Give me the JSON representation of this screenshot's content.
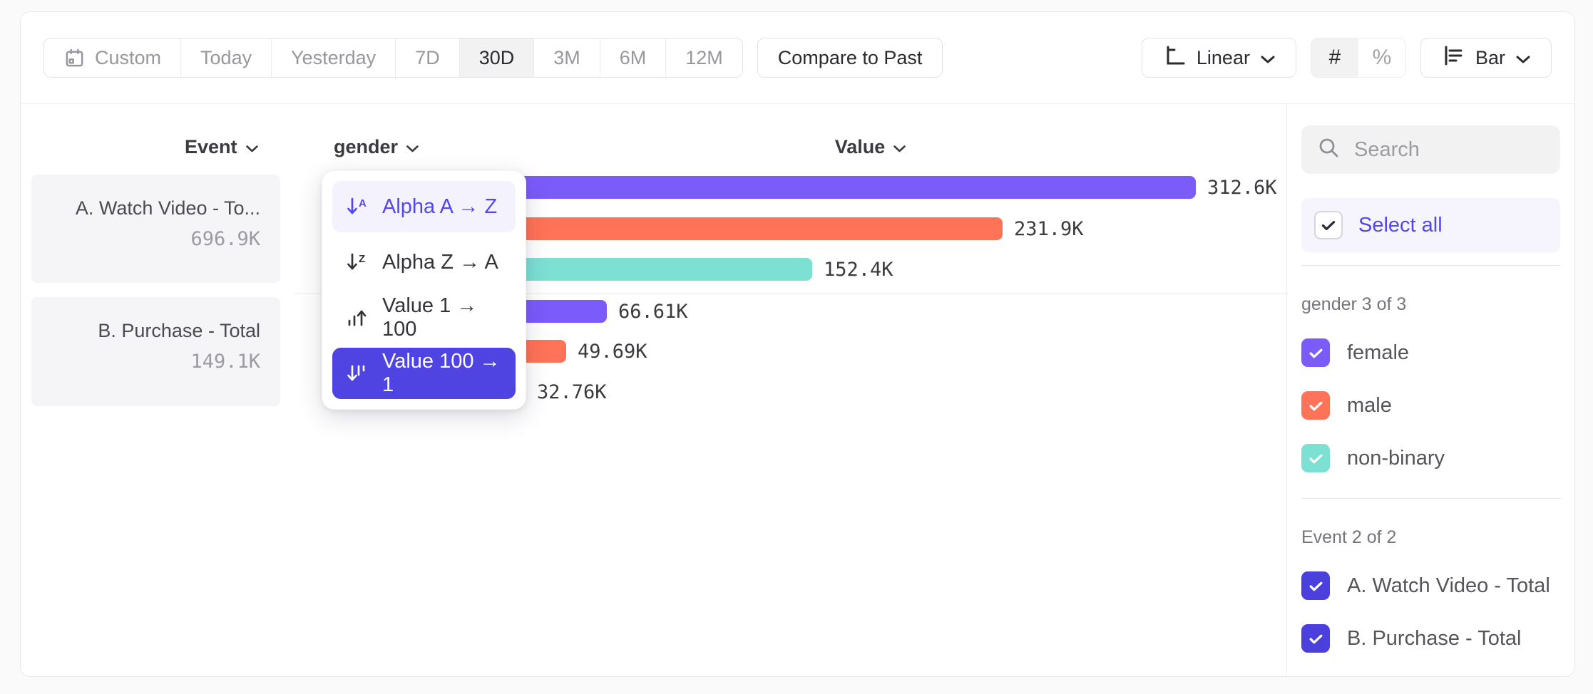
{
  "toolbar": {
    "date_ranges": [
      {
        "label": "Custom",
        "icon": "calendar-icon",
        "active": false
      },
      {
        "label": "Today",
        "active": false
      },
      {
        "label": "Yesterday",
        "active": false
      },
      {
        "label": "7D",
        "active": false
      },
      {
        "label": "30D",
        "active": true
      },
      {
        "label": "3M",
        "active": false
      },
      {
        "label": "6M",
        "active": false
      },
      {
        "label": "12M",
        "active": false
      }
    ],
    "compare_label": "Compare to Past",
    "scale_label": "Linear",
    "number_symbol": "#",
    "percent_symbol": "%",
    "value_format_active": "#",
    "chart_type_label": "Bar"
  },
  "columns": {
    "event": "Event",
    "breakdown": "gender",
    "value": "Value"
  },
  "events": [
    {
      "name": "A. Watch Video - To...",
      "total": "696.9K"
    },
    {
      "name": "B. Purchase - Total",
      "total": "149.1K"
    }
  ],
  "sort_menu": {
    "items": [
      {
        "id": "alpha-asc",
        "label": "Alpha A → Z",
        "state": "hover"
      },
      {
        "id": "alpha-desc",
        "label": "Alpha Z → A",
        "state": "normal"
      },
      {
        "id": "value-asc",
        "label": "Value 1 → 100",
        "state": "normal"
      },
      {
        "id": "value-desc",
        "label": "Value 100 → 1",
        "state": "selected"
      }
    ]
  },
  "chart_data": {
    "type": "bar",
    "orientation": "horizontal",
    "breakdown": "gender",
    "max_value_k": 312.6,
    "groups": [
      {
        "event": "A. Watch Video - Total",
        "bars": [
          {
            "category": "female",
            "value_k": 312.6,
            "label": "312.6K",
            "color": "#7b5bfa"
          },
          {
            "category": "male",
            "value_k": 231.9,
            "label": "231.9K",
            "color": "#ff7358"
          },
          {
            "category": "non-binary",
            "value_k": 152.4,
            "label": "152.4K",
            "color": "#7ce0d3"
          }
        ]
      },
      {
        "event": "B. Purchase - Total",
        "bars": [
          {
            "category": "female",
            "value_k": 66.61,
            "label": "66.61K",
            "color": "#7b5bfa"
          },
          {
            "category": "male",
            "value_k": 49.69,
            "label": "49.69K",
            "color": "#ff7358"
          },
          {
            "category": "non-binary",
            "value_k": 32.76,
            "label": "32.76K",
            "color": "#7ce0d3"
          }
        ]
      }
    ]
  },
  "sidebar": {
    "search_placeholder": "Search",
    "select_all_label": "Select all",
    "sections": [
      {
        "title": "gender 3 of 3",
        "items": [
          {
            "label": "female",
            "checked": true,
            "color": "#7b5bfa"
          },
          {
            "label": "male",
            "checked": true,
            "color": "#ff7358"
          },
          {
            "label": "non-binary",
            "checked": true,
            "color": "#7ce0d3"
          }
        ]
      },
      {
        "title": "Event 2 of 2",
        "items": [
          {
            "label": "A. Watch Video - Total",
            "checked": true,
            "color": "#4b40dd"
          },
          {
            "label": "B. Purchase - Total",
            "checked": true,
            "color": "#4b40dd"
          }
        ]
      }
    ]
  },
  "colors": {
    "accent": "#4f43e1",
    "link": "#5348e8",
    "bar_purple": "#7b5bfa",
    "bar_orange": "#ff7358",
    "bar_teal": "#7ce0d3"
  }
}
